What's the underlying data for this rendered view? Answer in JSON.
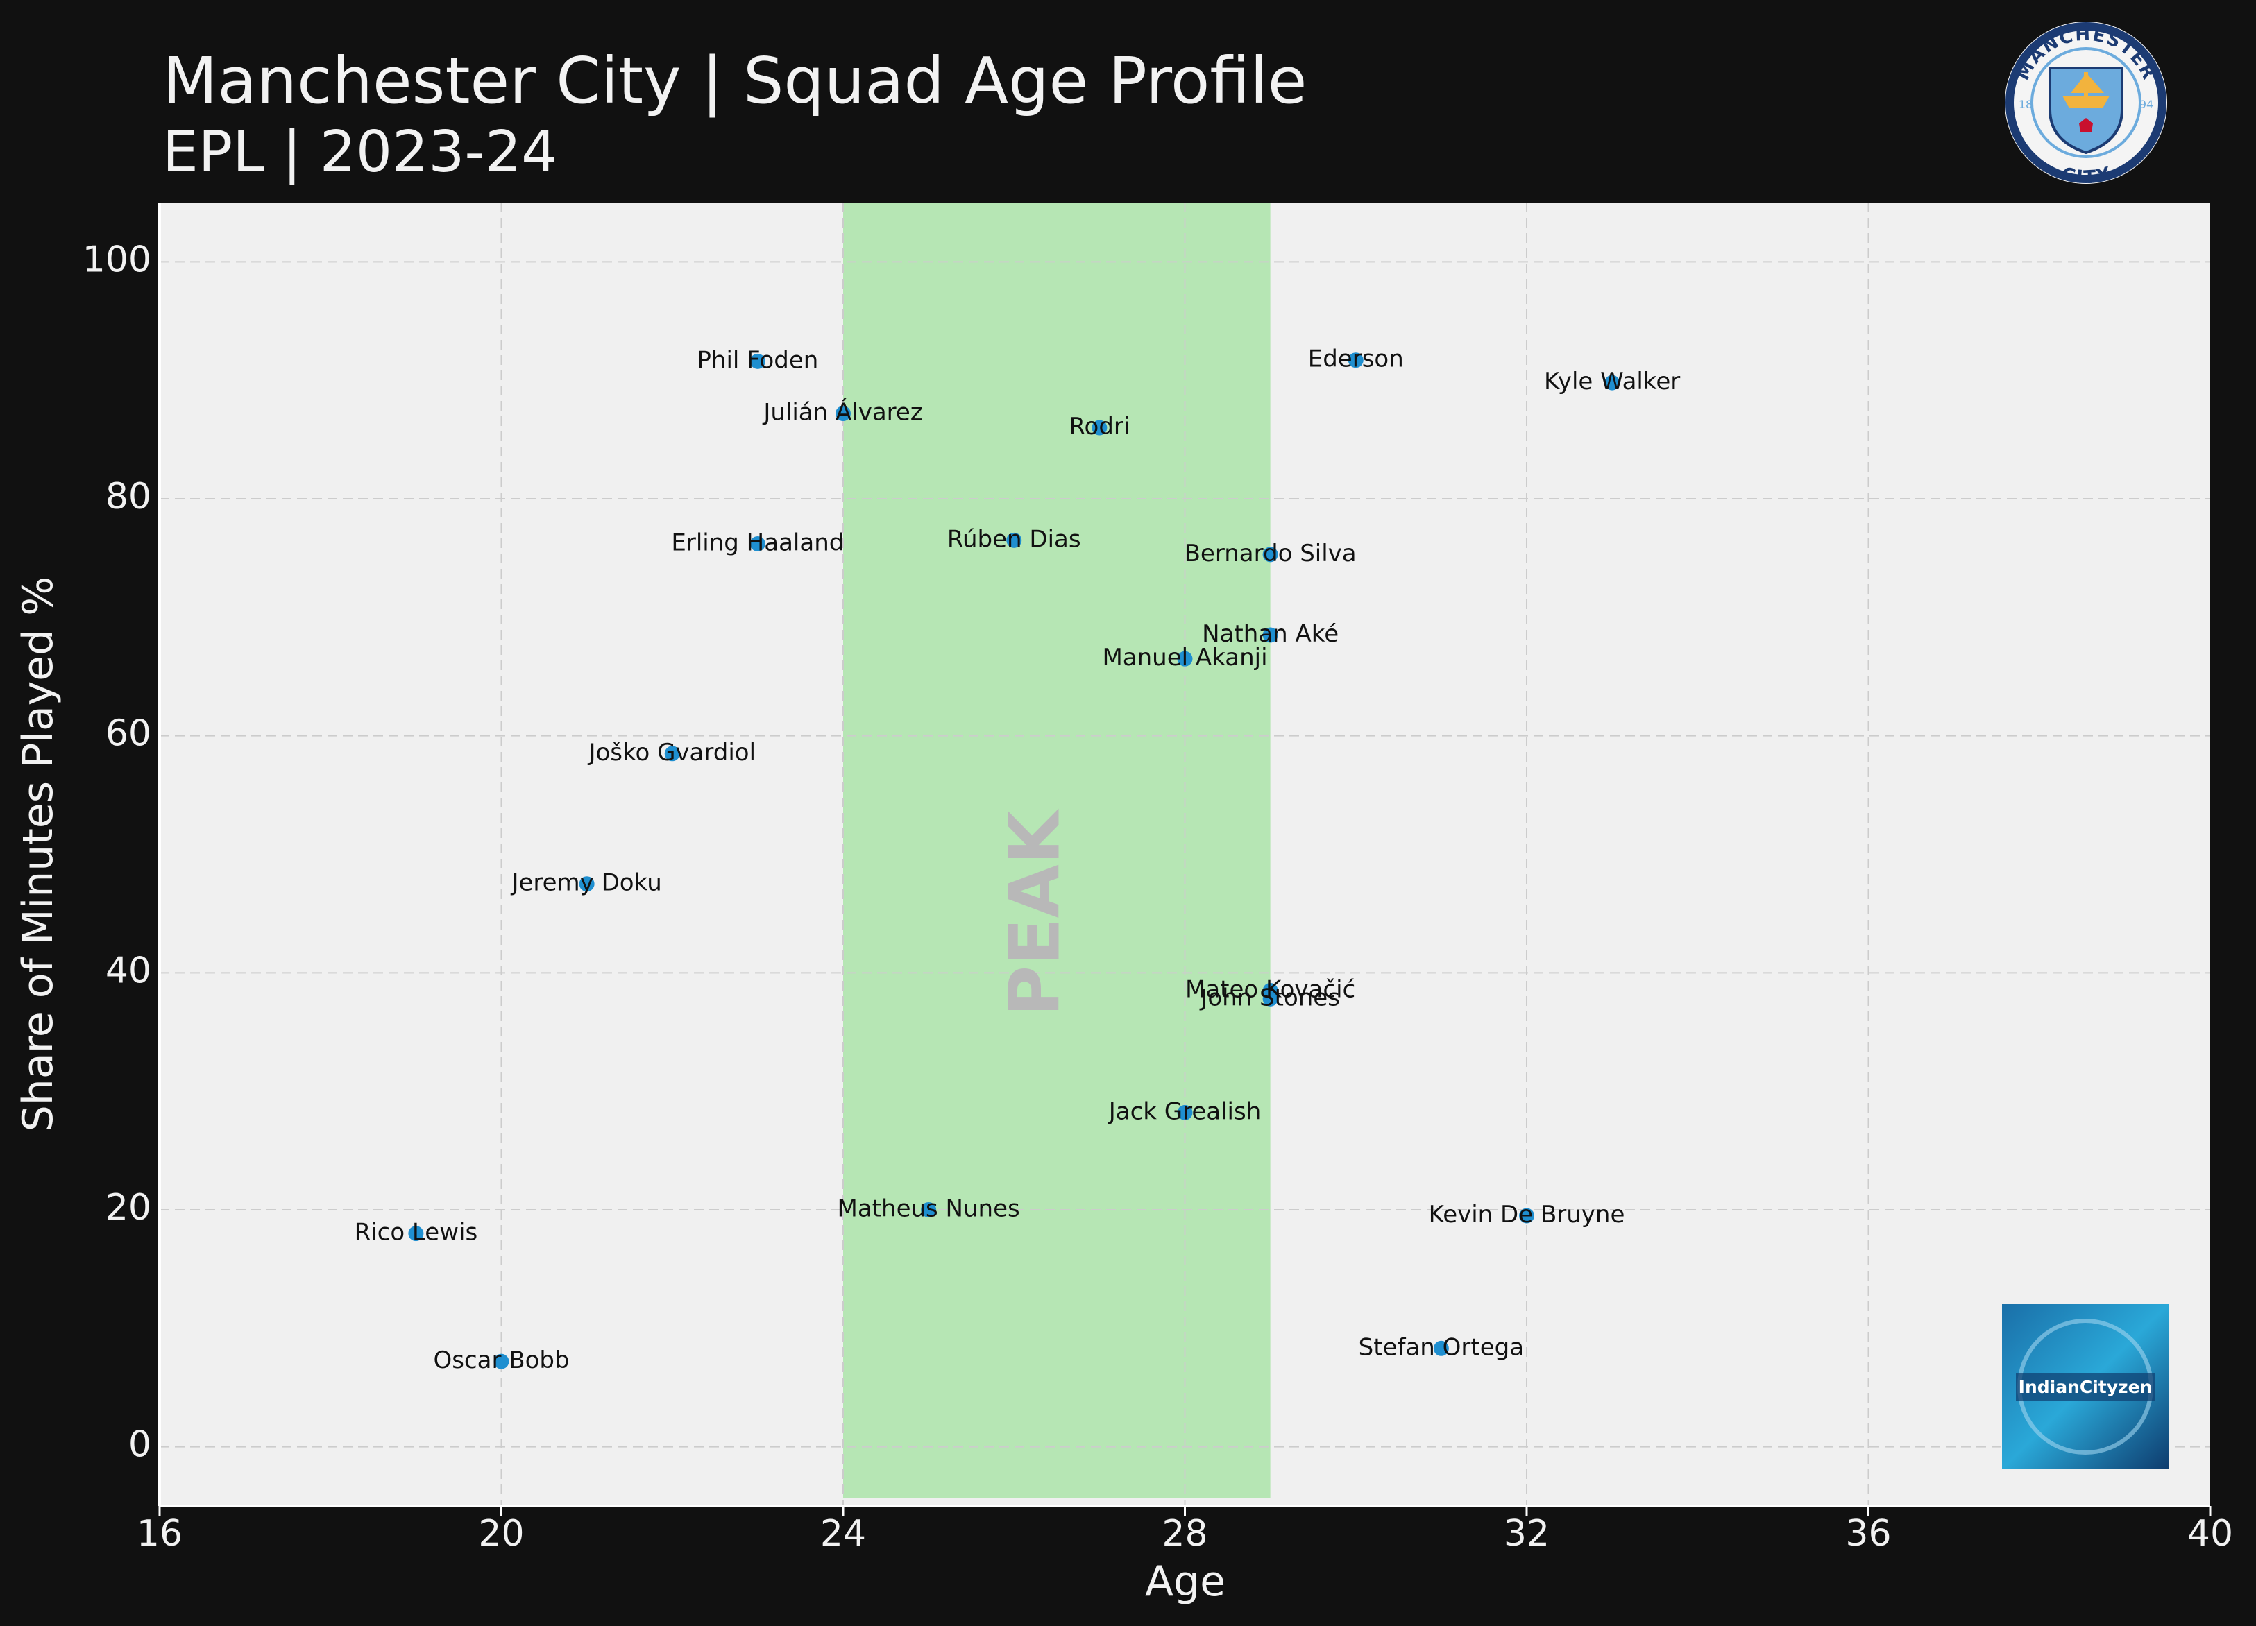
{
  "header": {
    "title": "Manchester City | Squad Age Profile",
    "subtitle": "EPL | 2023-24"
  },
  "crest": {
    "top_text": "MANCHESTER",
    "bottom_text": "CITY",
    "year_left": "18",
    "year_right": "94"
  },
  "watermark": {
    "text": "IndianCityzen"
  },
  "colors": {
    "background": "#111111",
    "plot_bg": "#f0f0f0",
    "point": "#1f8fd0",
    "peak_band": "#b6e6b4",
    "peak_text": "#b8b8b8",
    "grid": "#cccccc",
    "crest_navy": "#1c3b73",
    "crest_sky": "#6cabdd"
  },
  "chart_data": {
    "type": "scatter",
    "xlabel": "Age",
    "ylabel": "Share of Minutes Played %",
    "xlim": [
      16,
      40
    ],
    "ylim": [
      -5,
      105
    ],
    "xticks": [
      16,
      20,
      24,
      28,
      32,
      36,
      40
    ],
    "yticks": [
      0,
      20,
      40,
      60,
      80,
      100
    ],
    "grid": true,
    "peak_band": {
      "from": 24,
      "to": 29,
      "label": "PEAK"
    },
    "points": [
      {
        "name": "Phil Foden",
        "x": 23,
        "y": 91.6
      },
      {
        "name": "Ederson",
        "x": 30,
        "y": 91.7
      },
      {
        "name": "Kyle Walker",
        "x": 33,
        "y": 89.8
      },
      {
        "name": "Julián Álvarez",
        "x": 24,
        "y": 87.2
      },
      {
        "name": "Rodri",
        "x": 27,
        "y": 86.0
      },
      {
        "name": "Erling Haaland",
        "x": 23,
        "y": 76.2
      },
      {
        "name": "Rúben Dias",
        "x": 26,
        "y": 76.5
      },
      {
        "name": "Bernardo Silva",
        "x": 29,
        "y": 75.3
      },
      {
        "name": "Nathan Aké",
        "x": 29,
        "y": 68.5
      },
      {
        "name": "Manuel Akanji",
        "x": 28,
        "y": 66.5
      },
      {
        "name": "Joško Gvardiol",
        "x": 22,
        "y": 58.5
      },
      {
        "name": "Jeremy Doku",
        "x": 21,
        "y": 47.5
      },
      {
        "name": "Mateo Kovačić",
        "x": 29,
        "y": 38.5
      },
      {
        "name": "John Stones",
        "x": 29,
        "y": 37.8
      },
      {
        "name": "Jack Grealish",
        "x": 28,
        "y": 28.2
      },
      {
        "name": "Matheus Nunes",
        "x": 25,
        "y": 20.0
      },
      {
        "name": "Kevin De Bruyne",
        "x": 32,
        "y": 19.5
      },
      {
        "name": "Rico Lewis",
        "x": 19,
        "y": 18.0
      },
      {
        "name": "Stefan Ortega",
        "x": 31,
        "y": 8.3
      },
      {
        "name": "Oscar Bobb",
        "x": 20,
        "y": 7.2
      }
    ]
  }
}
